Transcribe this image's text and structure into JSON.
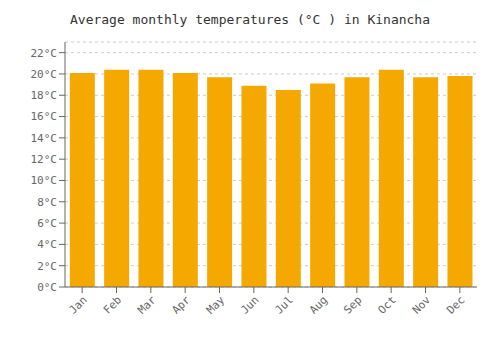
{
  "chart_data": {
    "type": "bar",
    "title": "Average monthly temperatures (°C ) in Kinancha",
    "categories": [
      "Jan",
      "Feb",
      "Mar",
      "Apr",
      "May",
      "Jun",
      "Jul",
      "Aug",
      "Sep",
      "Oct",
      "Nov",
      "Dec"
    ],
    "values": [
      20.1,
      20.4,
      20.4,
      20.1,
      19.7,
      18.9,
      18.5,
      19.1,
      19.7,
      20.4,
      19.7,
      19.8
    ],
    "color": "#F5A800",
    "ylim": [
      0,
      23
    ],
    "yticks": [
      {
        "value": 0,
        "label": "0°C"
      },
      {
        "value": 2,
        "label": "2°C"
      },
      {
        "value": 4,
        "label": "4°C"
      },
      {
        "value": 6,
        "label": "6°C"
      },
      {
        "value": 8,
        "label": "8°C"
      },
      {
        "value": 10,
        "label": "10°C"
      },
      {
        "value": 12,
        "label": "12°C"
      },
      {
        "value": 14,
        "label": "14°C"
      },
      {
        "value": 16,
        "label": "16°C"
      },
      {
        "value": 18,
        "label": "18°C"
      },
      {
        "value": 20,
        "label": "20°C"
      },
      {
        "value": 22,
        "label": "22°C"
      }
    ],
    "grid": true
  }
}
